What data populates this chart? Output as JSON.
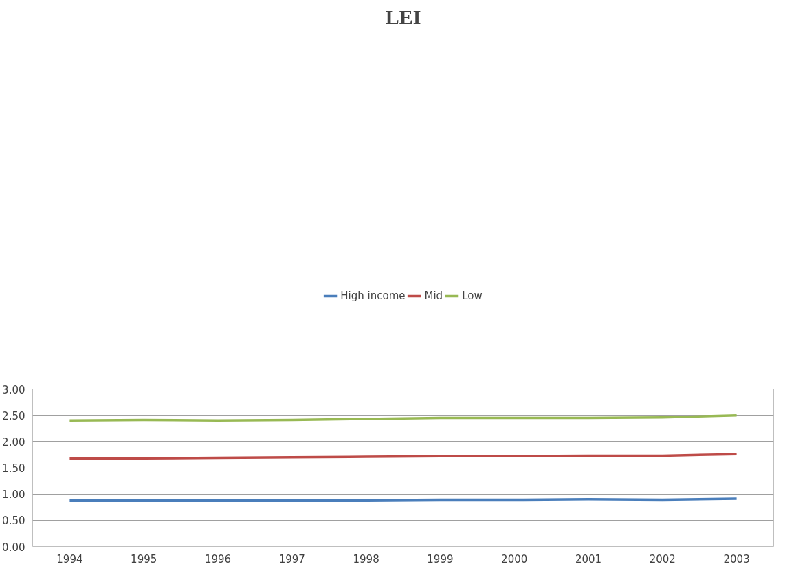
{
  "chart_data": {
    "type": "line",
    "title": "LEI",
    "categories": [
      "1994",
      "1995",
      "1996",
      "1997",
      "1998",
      "1999",
      "2000",
      "2001",
      "2002",
      "2003"
    ],
    "series": [
      {
        "name": "High income",
        "color": "#4a7ebb",
        "values": [
          0.88,
          0.88,
          0.88,
          0.88,
          0.88,
          0.89,
          0.89,
          0.9,
          0.89,
          0.91
        ]
      },
      {
        "name": "Mid",
        "color": "#be4b48",
        "values": [
          1.68,
          1.68,
          1.69,
          1.7,
          1.71,
          1.72,
          1.72,
          1.73,
          1.73,
          1.76
        ]
      },
      {
        "name": "Low",
        "color": "#98b954",
        "values": [
          2.4,
          2.41,
          2.4,
          2.41,
          2.43,
          2.45,
          2.45,
          2.45,
          2.46,
          2.5
        ]
      }
    ],
    "ylim": [
      0,
      3
    ],
    "yticks": [
      {
        "value": 0,
        "label": "0.00"
      },
      {
        "value": 0.5,
        "label": "0.50"
      },
      {
        "value": 1,
        "label": "1.00"
      },
      {
        "value": 1.5,
        "label": "1.50"
      },
      {
        "value": 2,
        "label": "2.00"
      },
      {
        "value": 2.5,
        "label": "2.50"
      },
      {
        "value": 3,
        "label": "3.00"
      }
    ],
    "grid": "y",
    "legend": "top",
    "marker": "none",
    "line_style": "solid"
  }
}
